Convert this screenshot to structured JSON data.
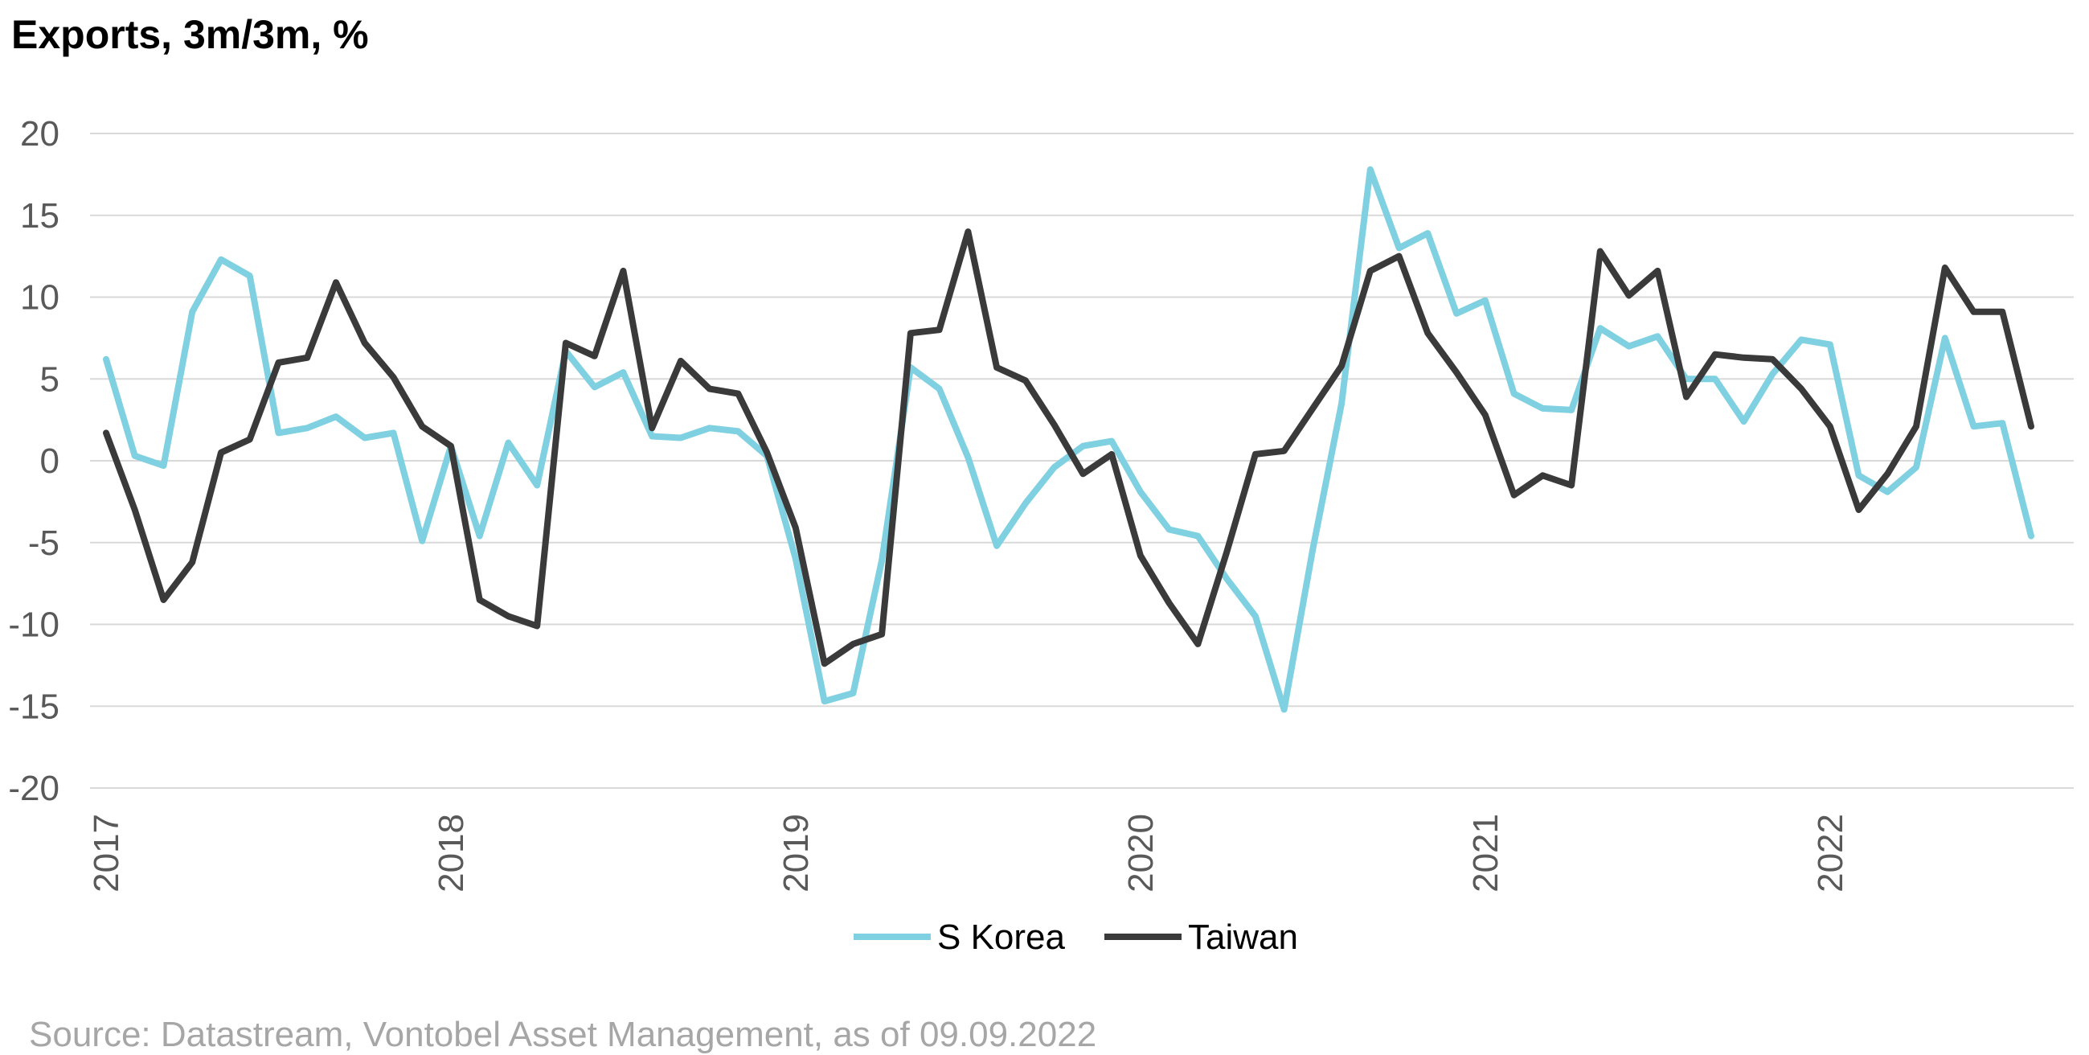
{
  "chart_data": {
    "type": "line",
    "title": "Exports, 3m/3m, %",
    "xlabel": "",
    "ylabel": "",
    "ylim": [
      -20,
      20
    ],
    "yticks": [
      20,
      15,
      10,
      5,
      0,
      -5,
      -10,
      -15,
      -20
    ],
    "x_start": "2017-01",
    "x_end": "2022-08",
    "xticks": [
      "2017",
      "2018",
      "2019",
      "2020",
      "2021",
      "2022"
    ],
    "grid": true,
    "legend_position": "bottom-center",
    "series": [
      {
        "name": "S Korea",
        "color": "#7fd0e0",
        "values": [
          6.2,
          0.3,
          -0.3,
          9.1,
          12.3,
          11.3,
          1.7,
          2.0,
          2.7,
          1.4,
          1.7,
          -4.9,
          0.9,
          -4.6,
          1.1,
          -1.5,
          6.7,
          4.5,
          5.4,
          1.5,
          1.4,
          2.0,
          1.8,
          0.3,
          -6.0,
          -14.7,
          -14.2,
          -6.1,
          5.7,
          4.4,
          0.2,
          -5.2,
          -2.6,
          -0.4,
          0.9,
          1.2,
          -1.9,
          -4.2,
          -4.6,
          -7.2,
          -9.5,
          -15.2,
          -5.4,
          3.5,
          17.8,
          13.0,
          13.9,
          9.0,
          9.8,
          4.1,
          3.2,
          3.1,
          8.1,
          7.0,
          7.6,
          5.0,
          5.0,
          2.4,
          5.3,
          7.4,
          7.1,
          -0.9,
          -1.9,
          -0.4,
          7.5,
          2.1,
          2.3,
          -4.6
        ]
      },
      {
        "name": "Taiwan",
        "color": "#3a3a3a",
        "values": [
          1.7,
          -3.0,
          -8.5,
          -6.2,
          0.5,
          1.3,
          6.0,
          6.3,
          10.9,
          7.2,
          5.1,
          2.1,
          0.9,
          -8.5,
          -9.5,
          -10.1,
          7.2,
          6.4,
          11.6,
          2.0,
          6.1,
          4.4,
          4.1,
          0.5,
          -4.1,
          -12.4,
          -11.2,
          -10.6,
          7.8,
          8.0,
          14.0,
          5.7,
          4.9,
          2.2,
          -0.8,
          0.4,
          -5.8,
          -8.7,
          -11.2,
          -5.6,
          0.4,
          0.6,
          3.2,
          5.8,
          11.6,
          12.5,
          7.8,
          5.4,
          2.8,
          -2.1,
          -0.9,
          -1.5,
          12.8,
          10.1,
          11.6,
          3.9,
          6.5,
          6.3,
          6.2,
          4.4,
          2.1,
          -3.0,
          -0.8,
          2.1,
          11.8,
          9.1,
          9.1,
          2.1
        ]
      }
    ]
  },
  "source": "Source: Datastream, Vontobel Asset Management, as of 09.09.2022"
}
